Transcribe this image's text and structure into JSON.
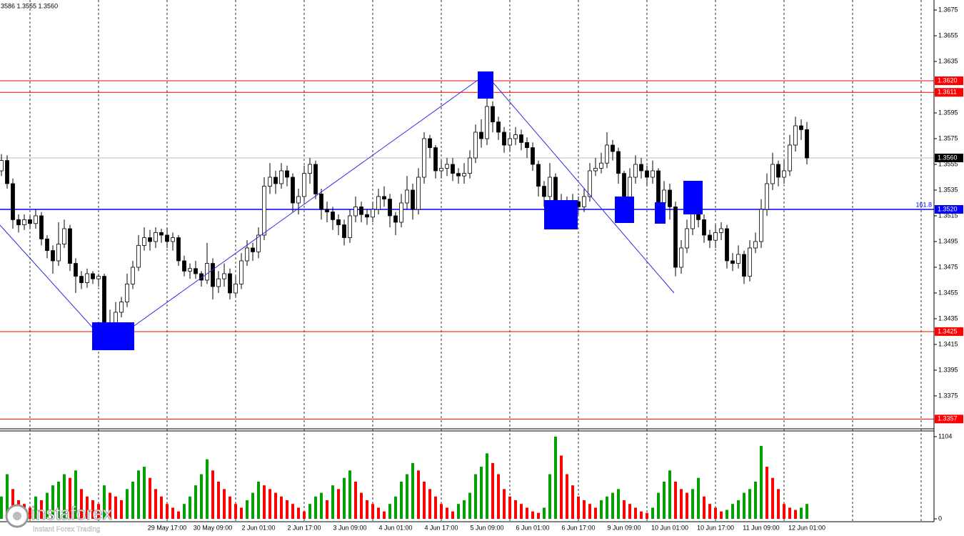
{
  "header": "3586 1.3555 1.3560",
  "logo": {
    "name": "instaforex",
    "tagline": "Instant Forex Trading"
  },
  "chart_data": {
    "type": "candlestick",
    "categories": [
      null,
      null,
      null,
      null,
      null,
      null,
      null,
      null,
      null,
      null,
      null,
      null,
      null,
      null,
      null,
      null,
      null,
      null,
      null,
      null,
      null,
      null,
      null,
      null,
      null,
      null,
      null,
      null,
      null,
      "29 May 17:00",
      null,
      null,
      null,
      null,
      null,
      null,
      null,
      "30 May 09:00",
      null,
      null,
      null,
      null,
      null,
      null,
      null,
      "2 Jun 01:00",
      null,
      null,
      null,
      null,
      null,
      null,
      null,
      "2 Jun 17:00",
      null,
      null,
      null,
      null,
      null,
      null,
      null,
      "3 Jun 09:00",
      null,
      null,
      null,
      null,
      null,
      null,
      null,
      "4 Jun 01:00",
      null,
      null,
      null,
      null,
      null,
      null,
      null,
      "4 Jun 17:00",
      null,
      null,
      null,
      null,
      null,
      null,
      null,
      "5 Jun 09:00",
      null,
      null,
      null,
      null,
      null,
      null,
      null,
      "6 Jun 01:00",
      null,
      null,
      null,
      null,
      null,
      null,
      null,
      "6 Jun 17:00",
      null,
      null,
      null,
      null,
      null,
      null,
      null,
      "9 Jun 09:00",
      null,
      null,
      null,
      null,
      null,
      null,
      null,
      "10 Jun 01:00",
      null,
      null,
      null,
      null,
      null,
      null,
      null,
      "10 Jun 17:00",
      null,
      null,
      null,
      null,
      null,
      null,
      null,
      "11 Jun 09:00",
      null,
      null,
      null,
      null,
      null,
      null,
      null,
      "12 Jun 01:00"
    ],
    "open": [
      1.355,
      1.3558,
      1.354,
      1.3512,
      1.3508,
      1.3512,
      1.3509,
      1.3515,
      1.3497,
      1.3488,
      1.348,
      1.3493,
      1.3505,
      1.3478,
      1.3468,
      1.3463,
      1.347,
      1.3466,
      1.3468,
      1.343,
      1.3432,
      1.344,
      1.3448,
      1.3462,
      1.3475,
      1.3492,
      1.3498,
      1.3495,
      1.3502,
      1.35,
      1.3495,
      1.3498,
      1.348,
      1.3472,
      1.3474,
      1.347,
      1.3465,
      1.3478,
      1.346,
      1.3466,
      1.347,
      1.3455,
      1.3462,
      1.348,
      1.349,
      1.3487,
      1.35,
      1.3538,
      1.3545,
      1.354,
      1.355,
      1.3545,
      1.3525,
      1.353,
      1.3548,
      1.3555,
      1.3532,
      1.352,
      1.3518,
      1.3512,
      1.3508,
      1.3498,
      1.3515,
      1.3522,
      1.3516,
      1.3514,
      1.352,
      1.353,
      1.3528,
      1.3515,
      1.351,
      1.3525,
      1.3535,
      1.352,
      1.3545,
      1.3575,
      1.3568,
      1.355,
      1.3552,
      1.3555,
      1.3548,
      1.3546,
      1.3548,
      1.356,
      1.358,
      1.3575,
      1.36,
      1.3588,
      1.358,
      1.357,
      1.3575,
      1.3578,
      1.3572,
      1.3568,
      1.3555,
      1.3538,
      1.353,
      1.3545,
      1.352,
      1.3525,
      1.3518,
      1.3526,
      1.3522,
      1.353,
      1.355,
      1.3552,
      1.3556,
      1.357,
      1.3565,
      1.3548,
      1.3528,
      1.3545,
      1.3555,
      1.355,
      1.3545,
      1.355,
      1.3525,
      1.3535,
      1.3522,
      1.3475,
      1.349,
      1.3505,
      1.353,
      1.3512,
      1.35,
      1.3496,
      1.3502,
      1.3505,
      1.348,
      1.3478,
      1.3485,
      1.3468,
      1.349,
      1.3495,
      1.352,
      1.354,
      1.3555,
      1.3545,
      1.355,
      1.357,
      1.3585,
      1.3582
    ],
    "high": [
      1.3563,
      1.3562,
      1.3544,
      1.3516,
      1.3516,
      1.3515,
      1.352,
      1.3518,
      1.35,
      1.3492,
      1.351,
      1.3512,
      1.3508,
      1.3482,
      1.3472,
      1.3474,
      1.3472,
      1.347,
      1.347,
      1.3442,
      1.3448,
      1.3452,
      1.347,
      1.348,
      1.35,
      1.3506,
      1.3504,
      1.3506,
      1.3505,
      1.3506,
      1.3502,
      1.35,
      1.3484,
      1.3478,
      1.348,
      1.3472,
      1.3494,
      1.3482,
      1.3472,
      1.3478,
      1.3474,
      1.3468,
      1.3486,
      1.3496,
      1.3494,
      1.3506,
      1.3545,
      1.3556,
      1.355,
      1.3556,
      1.3554,
      1.3548,
      1.3536,
      1.3554,
      1.356,
      1.3558,
      1.3536,
      1.3526,
      1.3522,
      1.3516,
      1.3512,
      1.352,
      1.353,
      1.3526,
      1.352,
      1.3526,
      1.3536,
      1.3538,
      1.3532,
      1.3518,
      1.3532,
      1.3546,
      1.354,
      1.3552,
      1.358,
      1.3578,
      1.357,
      1.3558,
      1.356,
      1.356,
      1.3552,
      1.3556,
      1.3566,
      1.3586,
      1.359,
      1.3608,
      1.3604,
      1.3592,
      1.3584,
      1.358,
      1.3584,
      1.3582,
      1.3576,
      1.3572,
      1.3558,
      1.3542,
      1.3556,
      1.3548,
      1.3532,
      1.353,
      1.3532,
      1.353,
      1.3536,
      1.3556,
      1.356,
      1.3564,
      1.358,
      1.3574,
      1.3568,
      1.355,
      1.3552,
      1.3562,
      1.356,
      1.3554,
      1.3558,
      1.3552,
      1.3542,
      1.354,
      1.3526,
      1.3496,
      1.3512,
      1.3536,
      1.3534,
      1.3516,
      1.3504,
      1.3508,
      1.351,
      1.3508,
      1.3486,
      1.3492,
      1.3488,
      1.3496,
      1.3502,
      1.3528,
      1.3548,
      1.3564,
      1.3558,
      1.3558,
      1.3578,
      1.3592,
      1.359,
      1.3588
    ],
    "low": [
      1.3546,
      1.3536,
      1.3505,
      1.3502,
      1.3504,
      1.3505,
      1.3505,
      1.3492,
      1.3482,
      1.347,
      1.3476,
      1.349,
      1.3472,
      1.3455,
      1.3458,
      1.3459,
      1.3462,
      1.346,
      1.342,
      1.3415,
      1.3428,
      1.3436,
      1.3444,
      1.3458,
      1.3472,
      1.3488,
      1.3488,
      1.349,
      1.3494,
      1.349,
      1.3488,
      1.3476,
      1.3468,
      1.3466,
      1.3466,
      1.346,
      1.3462,
      1.345,
      1.3455,
      1.346,
      1.345,
      1.3452,
      1.3458,
      1.3476,
      1.348,
      1.3482,
      1.3496,
      1.3532,
      1.3532,
      1.3536,
      1.3538,
      1.3518,
      1.3516,
      1.3526,
      1.354,
      1.3528,
      1.3512,
      1.351,
      1.3504,
      1.35,
      1.3492,
      1.3494,
      1.351,
      1.351,
      1.3508,
      1.351,
      1.3516,
      1.3522,
      1.3506,
      1.35,
      1.3506,
      1.352,
      1.3512,
      1.3516,
      1.354,
      1.356,
      1.3544,
      1.3544,
      1.3546,
      1.3542,
      1.354,
      1.354,
      1.3544,
      1.3556,
      1.3568,
      1.357,
      1.358,
      1.3574,
      1.3564,
      1.3565,
      1.357,
      1.3566,
      1.356,
      1.355,
      1.353,
      1.3522,
      1.352,
      1.3508,
      1.3512,
      1.351,
      1.3512,
      1.3516,
      1.3518,
      1.3526,
      1.3546,
      1.3548,
      1.3552,
      1.3558,
      1.354,
      1.352,
      1.3524,
      1.354,
      1.3544,
      1.3538,
      1.354,
      1.3518,
      1.352,
      1.3512,
      1.3468,
      1.347,
      1.3486,
      1.35,
      1.3506,
      1.3494,
      1.349,
      1.349,
      1.3496,
      1.3474,
      1.3472,
      1.3474,
      1.3462,
      1.3464,
      1.3486,
      1.349,
      1.3515,
      1.3535,
      1.3538,
      1.354,
      1.3546,
      1.3565,
      1.3574,
      1.3555
    ],
    "close": [
      1.3558,
      1.354,
      1.3512,
      1.3508,
      1.3512,
      1.3509,
      1.3515,
      1.3497,
      1.3488,
      1.348,
      1.3493,
      1.3505,
      1.3478,
      1.3468,
      1.3463,
      1.347,
      1.3466,
      1.3468,
      1.343,
      1.3432,
      1.344,
      1.3448,
      1.3462,
      1.3475,
      1.3492,
      1.3498,
      1.3495,
      1.3502,
      1.35,
      1.3495,
      1.3498,
      1.348,
      1.3472,
      1.3474,
      1.347,
      1.3465,
      1.3478,
      1.346,
      1.3466,
      1.347,
      1.3455,
      1.3462,
      1.348,
      1.349,
      1.3487,
      1.35,
      1.3538,
      1.3545,
      1.354,
      1.355,
      1.3545,
      1.3525,
      1.353,
      1.3548,
      1.3555,
      1.3532,
      1.352,
      1.3518,
      1.3512,
      1.3508,
      1.3498,
      1.3515,
      1.3522,
      1.3516,
      1.3514,
      1.352,
      1.353,
      1.3528,
      1.3515,
      1.351,
      1.3525,
      1.3535,
      1.352,
      1.3545,
      1.3575,
      1.3568,
      1.355,
      1.3552,
      1.3555,
      1.3548,
      1.3546,
      1.3548,
      1.356,
      1.358,
      1.3575,
      1.36,
      1.3588,
      1.358,
      1.357,
      1.3575,
      1.3578,
      1.3572,
      1.3568,
      1.3555,
      1.3538,
      1.353,
      1.3545,
      1.352,
      1.3525,
      1.3518,
      1.3526,
      1.3522,
      1.353,
      1.355,
      1.3552,
      1.3556,
      1.357,
      1.3565,
      1.3548,
      1.3528,
      1.3545,
      1.3555,
      1.355,
      1.3545,
      1.355,
      1.3525,
      1.3535,
      1.3522,
      1.3475,
      1.349,
      1.3505,
      1.353,
      1.3512,
      1.35,
      1.3496,
      1.3502,
      1.3505,
      1.348,
      1.3478,
      1.3485,
      1.3468,
      1.349,
      1.3495,
      1.352,
      1.354,
      1.3555,
      1.3545,
      1.355,
      1.357,
      1.3585,
      1.3582,
      1.356
    ],
    "bull_color": "#ffffff",
    "bear_color": "#000000",
    "ylim": [
      1.33494,
      1.36828
    ],
    "yticks": [
      1.3675,
      1.3655,
      1.3635,
      1.3595,
      1.3575,
      1.3555,
      1.3535,
      1.3515,
      1.3495,
      1.3475,
      1.3455,
      1.3435,
      1.3415,
      1.3395,
      1.3375
    ],
    "levels": [
      {
        "value": 1.362,
        "label": "1.3620",
        "color": "#ff0000"
      },
      {
        "value": 1.3611,
        "color": "#ff0000"
      },
      {
        "value": 1.352,
        "label": "1.3520",
        "color": "#0000ff",
        "fib_level": 161.8
      },
      {
        "value": 1.3425,
        "color": "#ff0000"
      },
      {
        "value": 1.3357,
        "color": "#ff0000"
      }
    ],
    "last_price": {
      "value": 1.356,
      "label": "1.3560",
      "color": "#000000"
    },
    "volume": {
      "values": [
        300,
        600,
        400,
        250,
        200,
        150,
        300,
        250,
        350,
        450,
        500,
        600,
        550,
        650,
        400,
        300,
        250,
        200,
        450,
        350,
        300,
        250,
        400,
        500,
        650,
        700,
        550,
        400,
        300,
        200,
        150,
        100,
        200,
        300,
        450,
        600,
        800,
        650,
        500,
        400,
        300,
        200,
        150,
        250,
        350,
        500,
        450,
        400,
        350,
        300,
        250,
        200,
        150,
        100,
        200,
        300,
        350,
        250,
        450,
        400,
        550,
        650,
        500,
        350,
        250,
        200,
        150,
        100,
        200,
        300,
        500,
        600,
        750,
        650,
        500,
        400,
        300,
        200,
        150,
        100,
        200,
        250,
        350,
        600,
        700,
        880,
        750,
        600,
        400,
        300,
        250,
        200,
        150,
        100,
        80,
        150,
        600,
        1104,
        850,
        600,
        450,
        300,
        250,
        200,
        150,
        250,
        300,
        350,
        400,
        250,
        200,
        150,
        100,
        80,
        150,
        350,
        500,
        650,
        500,
        400,
        350,
        400,
        550,
        300,
        200,
        150,
        100,
        120,
        200,
        250,
        350,
        400,
        500,
        980,
        700,
        550,
        400,
        200,
        150,
        120,
        150,
        200
      ],
      "up_color": "#00a000",
      "down_color": "#ff0000",
      "ylim": [
        0,
        1104
      ],
      "yticks": [
        0,
        1104
      ]
    }
  }
}
